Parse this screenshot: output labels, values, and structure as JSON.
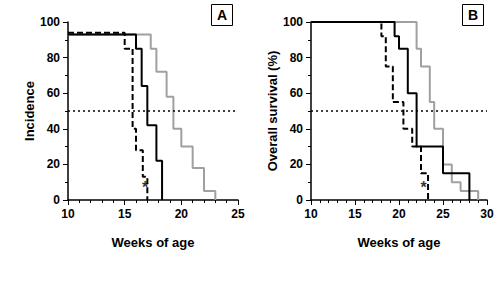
{
  "chart_data": [
    {
      "type": "line",
      "title": "A",
      "xlabel": "Weeks of age",
      "ylabel": "Incidence",
      "xlim": [
        10,
        25
      ],
      "xticks": [
        10,
        15,
        20,
        25
      ],
      "ylim": [
        0,
        100
      ],
      "yticks": [
        0,
        20,
        40,
        60,
        80,
        100
      ],
      "series": [
        {
          "color": "#000000",
          "line_style": "dashed",
          "x": [
            10,
            15,
            15.7,
            16,
            16.6,
            17
          ],
          "values": [
            94,
            85,
            40,
            28,
            13,
            0
          ]
        },
        {
          "color": "#000000",
          "line_style": "solid",
          "x": [
            10,
            16,
            16.5,
            17,
            17.8,
            18.3
          ],
          "values": [
            93,
            85,
            64,
            42,
            22,
            0
          ]
        },
        {
          "color": "#a0a0a0",
          "line_style": "solid",
          "x": [
            10,
            17.3,
            17.8,
            18.7,
            19.3,
            20,
            21,
            22,
            23
          ],
          "values": [
            93,
            85,
            72,
            58,
            40,
            30,
            18,
            5,
            0
          ]
        }
      ],
      "reference_lines": [
        {
          "y": 50,
          "line_style": "dotted"
        }
      ],
      "annotations": [
        {
          "text": "*",
          "x": 16.8,
          "y": 7
        }
      ]
    },
    {
      "type": "line",
      "title": "B",
      "xlabel": "Weeks of age",
      "ylabel": "Overall survival (%)",
      "xlim": [
        10,
        30
      ],
      "xticks": [
        10,
        15,
        20,
        25,
        30
      ],
      "ylim": [
        0,
        100
      ],
      "yticks": [
        0,
        20,
        40,
        60,
        80,
        100
      ],
      "series": [
        {
          "color": "#000000",
          "line_style": "dashed",
          "x": [
            10,
            18,
            18.5,
            19.3,
            20.5,
            21.5,
            22.5,
            23.3
          ],
          "values": [
            100,
            92,
            75,
            55,
            40,
            30,
            15,
            0
          ]
        },
        {
          "color": "#000000",
          "line_style": "solid",
          "x": [
            10,
            19.5,
            20,
            21,
            22,
            23,
            25,
            28
          ],
          "values": [
            100,
            92,
            85,
            60,
            30,
            30,
            15,
            0
          ]
        },
        {
          "color": "#a0a0a0",
          "line_style": "solid",
          "x": [
            10,
            22,
            22.5,
            23.5,
            24,
            25,
            26,
            27,
            28,
            29
          ],
          "values": [
            100,
            85,
            75,
            55,
            40,
            20,
            10,
            5,
            5,
            0
          ]
        }
      ],
      "reference_lines": [
        {
          "y": 50,
          "line_style": "dotted"
        }
      ],
      "annotations": [
        {
          "text": "*",
          "x": 22.8,
          "y": 7
        }
      ]
    }
  ]
}
